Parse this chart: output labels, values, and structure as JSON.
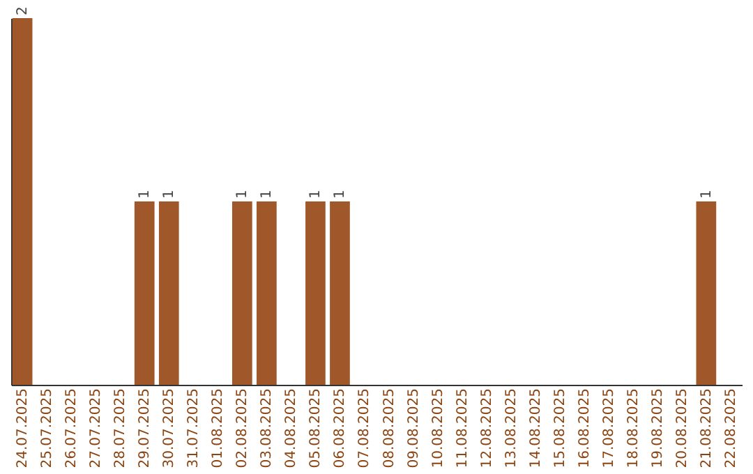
{
  "chart_data": {
    "type": "bar",
    "categories": [
      "24.07.2025",
      "25.07.2025",
      "26.07.2025",
      "27.07.2025",
      "28.07.2025",
      "29.07.2025",
      "30.07.2025",
      "31.07.2025",
      "01.08.2025",
      "02.08.2025",
      "03.08.2025",
      "04.08.2025",
      "05.08.2025",
      "06.08.2025",
      "07.08.2025",
      "08.08.2025",
      "09.08.2025",
      "10.08.2025",
      "11.08.2025",
      "12.08.2025",
      "13.08.2025",
      "14.08.2025",
      "15.08.2025",
      "16.08.2025",
      "17.08.2025",
      "18.08.2025",
      "19.08.2025",
      "20.08.2025",
      "21.08.2025",
      "22.08.2025"
    ],
    "values": [
      2,
      0,
      0,
      0,
      0,
      1,
      1,
      0,
      0,
      1,
      1,
      0,
      1,
      1,
      0,
      0,
      0,
      0,
      0,
      0,
      0,
      0,
      0,
      0,
      0,
      0,
      0,
      0,
      1,
      0
    ],
    "value_labels": [
      "2",
      null,
      null,
      null,
      null,
      "1",
      "1",
      null,
      null,
      "1",
      "1",
      null,
      "1",
      "1",
      null,
      null,
      null,
      null,
      null,
      null,
      null,
      null,
      null,
      null,
      null,
      null,
      null,
      null,
      "1",
      null
    ],
    "color": "#a0582b",
    "tick_labels": "x",
    "grid": false
  }
}
